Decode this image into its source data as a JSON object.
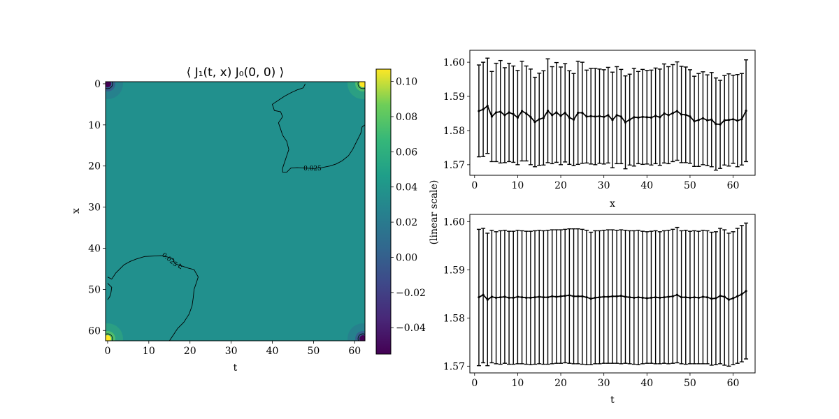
{
  "chart_data": [
    {
      "type": "heatmap",
      "title": "⟨ J₁(t, x) J₀(0, 0) ⟩",
      "xlabel": "t",
      "ylabel": "x",
      "xlim": [
        -0.5,
        62.5
      ],
      "ylim": [
        62.5,
        -0.5
      ],
      "xticks": [
        "0",
        "10",
        "20",
        "30",
        "40",
        "50",
        "60"
      ],
      "yticks": [
        "0",
        "10",
        "20",
        "30",
        "40",
        "50",
        "60"
      ],
      "background_value": 0.026,
      "background_color": "#21908d",
      "corner_spots": [
        {
          "t": 0,
          "x": 0,
          "value": -0.05,
          "color": "#440154"
        },
        {
          "t": 62,
          "x": 0,
          "value": 0.1,
          "color": "#fde725"
        },
        {
          "t": 0,
          "x": 62,
          "value": 0.1,
          "color": "#fde725"
        },
        {
          "t": 62,
          "x": 62,
          "value": -0.05,
          "color": "#440154"
        }
      ],
      "contour_level": "0.025",
      "contours": [
        {
          "points": [
            [
              48,
              0
            ],
            [
              47.5,
              1
            ],
            [
              46,
              1.5
            ],
            [
              44.5,
              2.2
            ],
            [
              43,
              3
            ],
            [
              41.5,
              4
            ],
            [
              40,
              5
            ],
            [
              40.5,
              6.5
            ],
            [
              42,
              6.8
            ],
            [
              42.5,
              8
            ],
            [
              41.5,
              9.5
            ],
            [
              42,
              11
            ],
            [
              42.5,
              12.5
            ],
            [
              43.5,
              14
            ],
            [
              44,
              16
            ],
            [
              43.5,
              17.5
            ],
            [
              43,
              19
            ],
            [
              42.5,
              20.5
            ],
            [
              42.5,
              21.5
            ],
            [
              43.5,
              21.5
            ],
            [
              44.5,
              20.5
            ],
            [
              46,
              20.4
            ],
            [
              48,
              20.5
            ],
            [
              50,
              20.6
            ],
            [
              52,
              20.4
            ],
            [
              54,
              20
            ],
            [
              55.5,
              19.5
            ],
            [
              57,
              18.7
            ],
            [
              58.5,
              17.5
            ],
            [
              59.5,
              16
            ],
            [
              60.5,
              14
            ],
            [
              61.5,
              12
            ],
            [
              61.8,
              10.5
            ],
            [
              62.5,
              10
            ]
          ]
        },
        {
          "points": [
            [
              0,
              47
            ],
            [
              1,
              47.5
            ],
            [
              2,
              46
            ],
            [
              3,
              45
            ],
            [
              4,
              44
            ],
            [
              5.5,
              43.2
            ],
            [
              7,
              42.6
            ],
            [
              9,
              42
            ],
            [
              11,
              41.9
            ],
            [
              13,
              41.8
            ],
            [
              14.5,
              42.1
            ],
            [
              16,
              42.6
            ],
            [
              16.2,
              43.6
            ],
            [
              17,
              44
            ],
            [
              18,
              44.3
            ],
            [
              19.5,
              44.8
            ],
            [
              21,
              45.2
            ],
            [
              22,
              47
            ],
            [
              21.5,
              48.5
            ],
            [
              21,
              50
            ],
            [
              20.8,
              52
            ],
            [
              20.5,
              54
            ],
            [
              19.8,
              56
            ],
            [
              18.5,
              58
            ],
            [
              17,
              59.5
            ],
            [
              16,
              61
            ],
            [
              15,
              62.5
            ]
          ]
        },
        {
          "points": [
            [
              0,
              48.5
            ],
            [
              1,
              49.5
            ],
            [
              0.8,
              50.8
            ],
            [
              0.5,
              51.8
            ],
            [
              0,
              52.5
            ]
          ]
        },
        {
          "points": [
            [
              18,
              44.5
            ],
            [
              17.6,
              43.8
            ],
            [
              17.2,
              44.6
            ],
            [
              17.8,
              45
            ]
          ]
        }
      ],
      "colorbar": {
        "min": -0.055,
        "max": 0.107,
        "ticks": [
          "0.10",
          "0.08",
          "0.06",
          "0.04",
          "0.02",
          "0.00",
          "−0.02",
          "−0.04"
        ],
        "tick_values": [
          0.1,
          0.08,
          0.06,
          0.04,
          0.02,
          0.0,
          -0.02,
          -0.04
        ],
        "colormap": "viridis"
      }
    },
    {
      "type": "line",
      "errorbars": true,
      "xlabel": "x",
      "ylabel": "",
      "xlim": [
        -1.1,
        65.1
      ],
      "ylim": [
        1.5669,
        1.6035
      ],
      "xticks": [
        "0",
        "10",
        "20",
        "30",
        "40",
        "50",
        "60"
      ],
      "yticks": [
        "1.60",
        "1.59",
        "1.58",
        "1.57"
      ],
      "x": [
        1,
        2,
        3,
        4,
        5,
        6,
        7,
        8,
        9,
        10,
        11,
        12,
        13,
        14,
        15,
        16,
        17,
        18,
        19,
        20,
        21,
        22,
        23,
        24,
        25,
        26,
        27,
        28,
        29,
        30,
        31,
        32,
        33,
        34,
        35,
        36,
        37,
        38,
        39,
        40,
        41,
        42,
        43,
        44,
        45,
        46,
        47,
        48,
        49,
        50,
        51,
        52,
        53,
        54,
        55,
        56,
        57,
        58,
        59,
        60,
        61,
        62,
        63
      ],
      "values": [
        1.5857,
        1.5862,
        1.5872,
        1.5841,
        1.5853,
        1.5855,
        1.5845,
        1.5853,
        1.5848,
        1.5838,
        1.5857,
        1.585,
        1.584,
        1.5825,
        1.5833,
        1.5837,
        1.5858,
        1.5845,
        1.5853,
        1.5843,
        1.5852,
        1.5838,
        1.5832,
        1.5852,
        1.5852,
        1.5841,
        1.5842,
        1.5841,
        1.5842,
        1.584,
        1.5845,
        1.5831,
        1.5845,
        1.5841,
        1.5824,
        1.5832,
        1.5839,
        1.5838,
        1.584,
        1.5839,
        1.5838,
        1.5843,
        1.5839,
        1.585,
        1.5845,
        1.5851,
        1.5857,
        1.5847,
        1.5846,
        1.5841,
        1.5827,
        1.5831,
        1.5836,
        1.583,
        1.5832,
        1.5819,
        1.5818,
        1.583,
        1.5831,
        1.5833,
        1.5829,
        1.5833,
        1.5858
      ],
      "lower": [
        1.5723,
        1.5724,
        1.5733,
        1.5709,
        1.5709,
        1.5705,
        1.5706,
        1.5709,
        1.5707,
        1.57,
        1.5711,
        1.5711,
        1.57,
        1.5694,
        1.5698,
        1.5699,
        1.5706,
        1.5703,
        1.5707,
        1.57,
        1.5708,
        1.5701,
        1.5697,
        1.5701,
        1.5704,
        1.5705,
        1.5702,
        1.57,
        1.5704,
        1.5702,
        1.5705,
        1.5691,
        1.5703,
        1.5703,
        1.5688,
        1.5699,
        1.5696,
        1.5703,
        1.5701,
        1.5702,
        1.5699,
        1.5703,
        1.5698,
        1.5705,
        1.5703,
        1.5709,
        1.5713,
        1.5706,
        1.5706,
        1.5704,
        1.5695,
        1.5695,
        1.57,
        1.5697,
        1.5694,
        1.5684,
        1.5689,
        1.5699,
        1.5696,
        1.5704,
        1.5694,
        1.5699,
        1.5709
      ],
      "upper": [
        1.5992,
        1.6,
        1.6012,
        1.5973,
        1.5997,
        1.6005,
        1.5984,
        1.5997,
        1.5989,
        1.5976,
        1.6003,
        1.5989,
        1.598,
        1.5956,
        1.5968,
        1.5975,
        1.601,
        1.5987,
        1.5999,
        1.5986,
        1.5996,
        1.5975,
        1.5967,
        1.6003,
        1.6,
        1.5977,
        1.5982,
        1.5982,
        1.598,
        1.5978,
        1.5985,
        1.5971,
        1.5987,
        1.5979,
        1.596,
        1.5965,
        1.5982,
        1.5973,
        1.5979,
        1.5976,
        1.5977,
        1.5983,
        1.598,
        1.5995,
        1.5987,
        1.5993,
        1.6001,
        1.5988,
        1.5986,
        1.5978,
        1.5959,
        1.5967,
        1.5972,
        1.5963,
        1.597,
        1.5954,
        1.5947,
        1.5961,
        1.5966,
        1.5962,
        1.5964,
        1.5967,
        1.6007
      ]
    },
    {
      "type": "line",
      "errorbars": true,
      "xlabel": "t",
      "ylabel": "",
      "xlim": [
        -1.1,
        65.1
      ],
      "ylim": [
        1.5686,
        1.6015
      ],
      "xticks": [
        "0",
        "10",
        "20",
        "30",
        "40",
        "50",
        "60"
      ],
      "yticks": [
        "1.60",
        "1.59",
        "1.58",
        "1.57"
      ],
      "x": [
        1,
        2,
        3,
        4,
        5,
        6,
        7,
        8,
        9,
        10,
        11,
        12,
        13,
        14,
        15,
        16,
        17,
        18,
        19,
        20,
        21,
        22,
        23,
        24,
        25,
        26,
        27,
        28,
        29,
        30,
        31,
        32,
        33,
        34,
        35,
        36,
        37,
        38,
        39,
        40,
        41,
        42,
        43,
        44,
        45,
        46,
        47,
        48,
        49,
        50,
        51,
        52,
        53,
        54,
        55,
        56,
        57,
        58,
        59,
        60,
        61,
        62,
        63
      ],
      "values": [
        1.5843,
        1.5848,
        1.5838,
        1.5844,
        1.5842,
        1.5843,
        1.5844,
        1.5842,
        1.5842,
        1.5844,
        1.5843,
        1.5842,
        1.5842,
        1.5843,
        1.5844,
        1.5843,
        1.5843,
        1.5845,
        1.5844,
        1.5845,
        1.5846,
        1.5847,
        1.5845,
        1.5845,
        1.5845,
        1.5843,
        1.584,
        1.5842,
        1.5843,
        1.5844,
        1.5844,
        1.5845,
        1.5845,
        1.5846,
        1.5844,
        1.5843,
        1.5842,
        1.5843,
        1.5842,
        1.5841,
        1.5842,
        1.5843,
        1.5842,
        1.5843,
        1.5844,
        1.5845,
        1.5848,
        1.5843,
        1.5843,
        1.5842,
        1.5843,
        1.5842,
        1.5844,
        1.5843,
        1.584,
        1.5841,
        1.5846,
        1.5844,
        1.5838,
        1.5841,
        1.5845,
        1.5849,
        1.5856
      ],
      "lower": [
        1.5701,
        1.5707,
        1.5701,
        1.5707,
        1.5705,
        1.5704,
        1.5706,
        1.5704,
        1.5704,
        1.5705,
        1.5705,
        1.5704,
        1.5703,
        1.5704,
        1.5705,
        1.5704,
        1.5704,
        1.5705,
        1.5706,
        1.5706,
        1.5707,
        1.5706,
        1.5705,
        1.5705,
        1.5704,
        1.5703,
        1.5703,
        1.5705,
        1.5705,
        1.5706,
        1.5706,
        1.5706,
        1.5706,
        1.5705,
        1.5706,
        1.5705,
        1.5704,
        1.5703,
        1.5705,
        1.5706,
        1.5706,
        1.5705,
        1.5705,
        1.5706,
        1.5705,
        1.5706,
        1.5707,
        1.5705,
        1.5704,
        1.5705,
        1.5705,
        1.5705,
        1.5705,
        1.5705,
        1.5702,
        1.5703,
        1.5705,
        1.5702,
        1.57,
        1.5703,
        1.5706,
        1.5709,
        1.5715
      ],
      "upper": [
        1.5984,
        1.5986,
        1.5976,
        1.5982,
        1.5979,
        1.5981,
        1.5982,
        1.598,
        1.598,
        1.5982,
        1.5981,
        1.598,
        1.598,
        1.5981,
        1.5982,
        1.5981,
        1.5982,
        1.5983,
        1.5983,
        1.5983,
        1.5984,
        1.5985,
        1.5985,
        1.5985,
        1.5984,
        1.5982,
        1.5978,
        1.5981,
        1.5981,
        1.5982,
        1.5983,
        1.5983,
        1.5982,
        1.5983,
        1.5982,
        1.5981,
        1.5981,
        1.5982,
        1.598,
        1.5979,
        1.598,
        1.5981,
        1.5979,
        1.5981,
        1.5982,
        1.5984,
        1.5988,
        1.5981,
        1.5982,
        1.598,
        1.5981,
        1.598,
        1.5982,
        1.5981,
        1.5978,
        1.5979,
        1.5986,
        1.5983,
        1.5976,
        1.5979,
        1.5986,
        1.5992,
        1.5997
      ]
    }
  ],
  "shared_ylabel": "(linear scale)"
}
